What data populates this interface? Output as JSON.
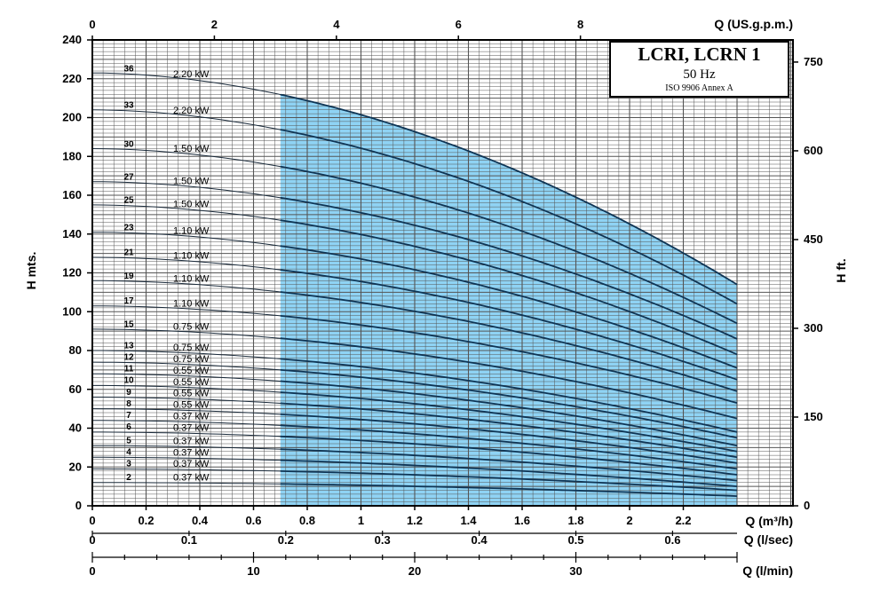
{
  "chart_data": {
    "type": "line",
    "title_box": {
      "title": "LCRI, LCRN 1",
      "frequency": "50 Hz",
      "standard": "ISO 9906 Annex A"
    },
    "axes": {
      "x_primary": {
        "label": "Q (m³/h)",
        "range": [
          0,
          2.4
        ],
        "ticks": [
          "0",
          "0.2",
          "0.4",
          "0.6",
          "0.8",
          "1",
          "1.2",
          "1.4",
          "1.6",
          "1.8",
          "2",
          "2.2"
        ]
      },
      "x_top": {
        "label": "Q (US.g.p.m.)",
        "ticks": [
          "0",
          "2",
          "4",
          "6",
          "8"
        ]
      },
      "x_lsec": {
        "label": "Q (l/sec)",
        "ticks": [
          "0",
          "0.1",
          "0.2",
          "0.3",
          "0.4",
          "0.5",
          "0.6"
        ]
      },
      "x_lmin": {
        "label": "Q (l/min)",
        "ticks": [
          "0",
          "10",
          "20",
          "30"
        ]
      },
      "y_left": {
        "label": "H mts.",
        "range": [
          0,
          240
        ],
        "ticks": [
          "0",
          "20",
          "40",
          "60",
          "80",
          "100",
          "120",
          "140",
          "160",
          "180",
          "200",
          "220",
          "240"
        ]
      },
      "y_right": {
        "label": "H ft.",
        "ticks": [
          "0",
          "150",
          "300",
          "450",
          "600",
          "750"
        ]
      }
    },
    "grid": true,
    "recommended_range": {
      "q_from": 0.7,
      "q_to": 2.4,
      "color": "#8fd3f4"
    },
    "series": [
      {
        "name": "36",
        "power": "2.20 kW",
        "h0": 223,
        "h_end": 114
      },
      {
        "name": "33",
        "power": "2.20 kW",
        "h0": 204,
        "h_end": 104
      },
      {
        "name": "30",
        "power": "1.50 kW",
        "h0": 184,
        "h_end": 94
      },
      {
        "name": "27",
        "power": "1.50 kW",
        "h0": 167,
        "h_end": 86
      },
      {
        "name": "25",
        "power": "1.50 kW",
        "h0": 155,
        "h_end": 78
      },
      {
        "name": "23",
        "power": "1.10 kW",
        "h0": 141,
        "h_end": 71
      },
      {
        "name": "21",
        "power": "1.10 kW",
        "h0": 128,
        "h_end": 65
      },
      {
        "name": "19",
        "power": "1.10 kW",
        "h0": 116,
        "h_end": 59
      },
      {
        "name": "17",
        "power": "1.10 kW",
        "h0": 103,
        "h_end": 53
      },
      {
        "name": "15",
        "power": "0.75 kW",
        "h0": 91,
        "h_end": 45
      },
      {
        "name": "13",
        "power": "0.75 kW",
        "h0": 80,
        "h_end": 38
      },
      {
        "name": "12",
        "power": "0.75 kW",
        "h0": 74,
        "h_end": 35
      },
      {
        "name": "11",
        "power": "0.55 kW",
        "h0": 68,
        "h_end": 31
      },
      {
        "name": "10",
        "power": "0.55 kW",
        "h0": 62,
        "h_end": 28
      },
      {
        "name": "9",
        "power": "0.55 kW",
        "h0": 56,
        "h_end": 25
      },
      {
        "name": "8",
        "power": "0.55 kW",
        "h0": 50,
        "h_end": 22
      },
      {
        "name": "7",
        "power": "0.37 kW",
        "h0": 44,
        "h_end": 19
      },
      {
        "name": "6",
        "power": "0.37 kW",
        "h0": 38,
        "h_end": 16
      },
      {
        "name": "5",
        "power": "0.37 kW",
        "h0": 31,
        "h_end": 13
      },
      {
        "name": "4",
        "power": "0.37 kW",
        "h0": 25,
        "h_end": 10
      },
      {
        "name": "3",
        "power": "0.37 kW",
        "h0": 19,
        "h_end": 8
      },
      {
        "name": "2",
        "power": "0.37 kW",
        "h0": 12,
        "h_end": 5
      }
    ]
  }
}
